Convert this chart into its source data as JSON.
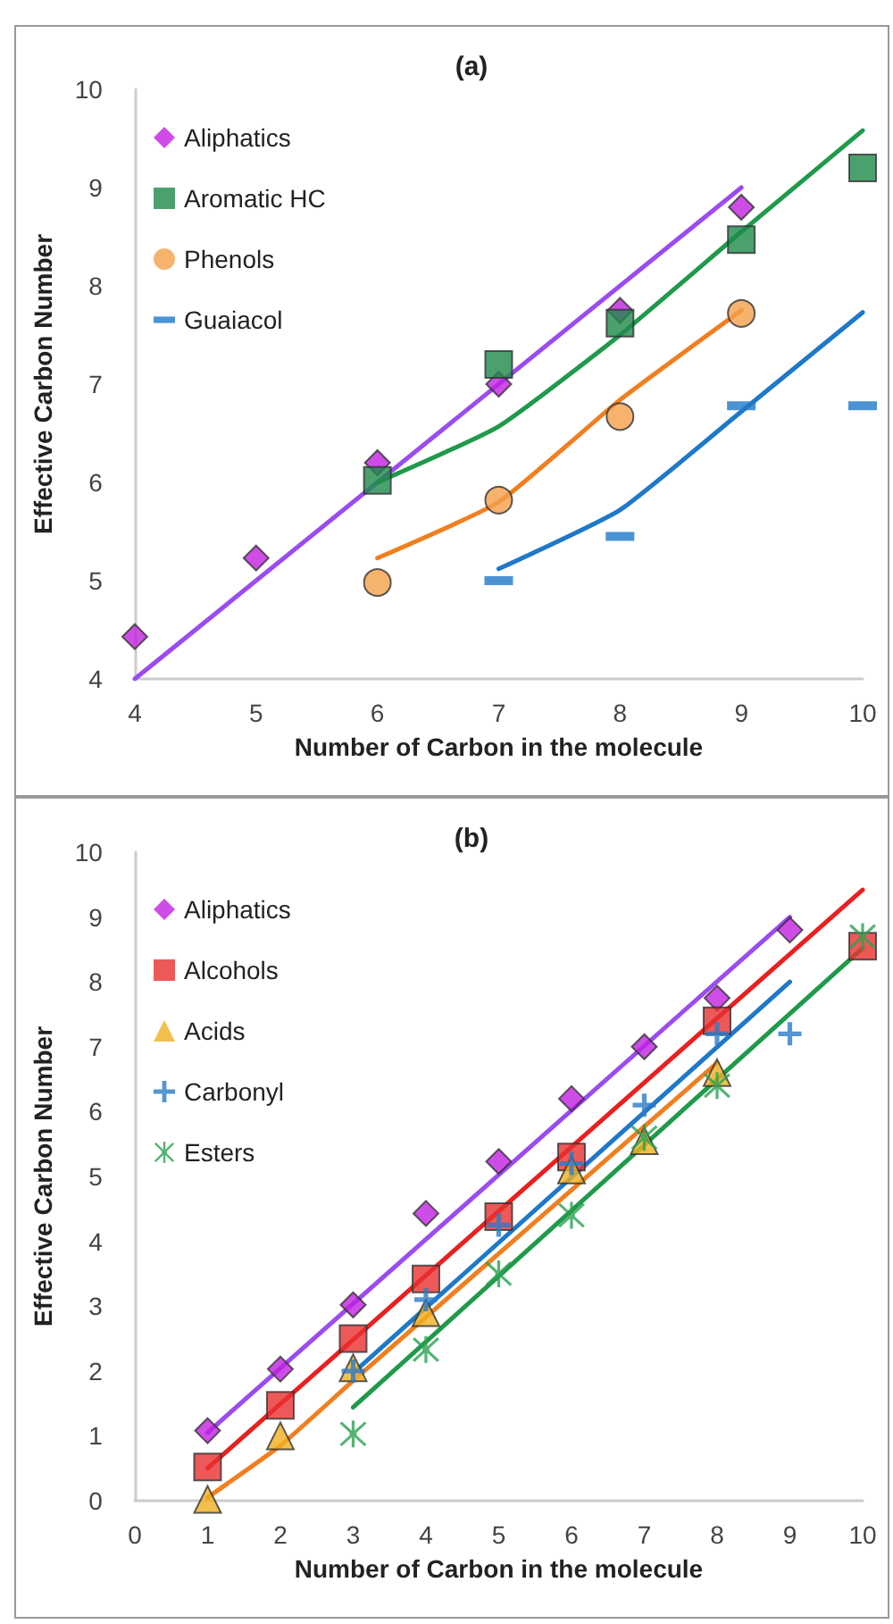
{
  "chart_data": [
    {
      "type": "scatter",
      "title": "(a)",
      "xlabel": "Number of Carbon in the molecule",
      "ylabel": "Effective Carbon Number",
      "xlim": [
        4,
        10
      ],
      "xticks": [
        4,
        5,
        6,
        7,
        8,
        9,
        10
      ],
      "ylim": [
        4,
        10
      ],
      "yticks": [
        4,
        5,
        6,
        7,
        8,
        9,
        10
      ],
      "legend": "top left",
      "series": [
        {
          "type": "line",
          "color": "#9b4cf0",
          "x": [
            4,
            9
          ],
          "values": [
            4,
            9
          ]
        },
        {
          "type": "line",
          "color": "#1f9a4a",
          "x": [
            6,
            7,
            8,
            9,
            10
          ],
          "values": [
            6.0,
            6.57,
            7.5,
            8.55,
            9.58
          ]
        },
        {
          "type": "line",
          "color": "#f07f20",
          "x": [
            6,
            7,
            8,
            9
          ],
          "values": [
            5.23,
            5.8,
            6.84,
            7.75
          ]
        },
        {
          "type": "line",
          "color": "#1f78c8",
          "x": [
            7,
            8,
            9,
            10
          ],
          "values": [
            5.12,
            5.72,
            6.72,
            7.73
          ]
        },
        {
          "type": "scatter",
          "name": "Aliphatics",
          "color": "#c020e0",
          "marker": "diamond",
          "x": [
            4,
            5,
            6,
            7,
            8,
            9
          ],
          "values": [
            4.43,
            5.23,
            6.2,
            7.0,
            7.75,
            8.8
          ]
        },
        {
          "type": "scatter",
          "name": "Aromatic HC",
          "color": "#1e8a4a",
          "marker": "square",
          "x": [
            6,
            7,
            8,
            9,
            10
          ],
          "values": [
            6.02,
            7.2,
            7.62,
            8.47,
            9.2
          ]
        },
        {
          "type": "scatter",
          "name": "Phenols",
          "color": "#f4a04a",
          "marker": "circle",
          "x": [
            6,
            7,
            8,
            9
          ],
          "values": [
            4.98,
            5.82,
            6.67,
            7.72
          ]
        },
        {
          "type": "scatter",
          "name": "Guaiacol",
          "color": "#1f78c8",
          "x": [
            7,
            8,
            9,
            10
          ],
          "values": [
            5.0,
            5.45,
            6.78,
            6.78
          ]
        }
      ]
    },
    {
      "type": "scatter",
      "title": "(b)",
      "xlabel": "Number of Carbon in the molecule",
      "ylabel": "Effective Carbon Number",
      "xlim": [
        0,
        10
      ],
      "xticks": [
        0,
        1,
        2,
        3,
        4,
        5,
        6,
        7,
        8,
        9,
        10
      ],
      "ylim": [
        0,
        10
      ],
      "yticks": [
        0,
        1,
        2,
        3,
        4,
        5,
        6,
        7,
        8,
        9,
        10
      ],
      "legend": "top left",
      "series": [
        {
          "type": "line",
          "color": "#9b4cf0",
          "x": [
            1,
            9
          ],
          "values": [
            1.05,
            9.0
          ]
        },
        {
          "type": "line",
          "color": "#e82020",
          "x": [
            1,
            10
          ],
          "values": [
            0.5,
            9.42
          ]
        },
        {
          "type": "line",
          "color": "#f07f20",
          "x": [
            1,
            2,
            3,
            8
          ],
          "values": [
            0.05,
            0.85,
            1.85,
            6.75
          ]
        },
        {
          "type": "line",
          "color": "#1f78c8",
          "x": [
            3,
            9
          ],
          "values": [
            1.97,
            8.0
          ]
        },
        {
          "type": "line",
          "color": "#1f9a4a",
          "x": [
            3,
            10
          ],
          "values": [
            1.44,
            8.52
          ]
        },
        {
          "type": "scatter",
          "name": "Aliphatics",
          "color": "#c020e0",
          "marker": "diamond",
          "x": [
            1,
            2,
            3,
            4,
            5,
            6,
            7,
            8,
            9
          ],
          "values": [
            1.08,
            2.03,
            3.02,
            4.43,
            5.23,
            6.2,
            7.0,
            7.75,
            8.8
          ]
        },
        {
          "type": "scatter",
          "name": "Alcohols",
          "color": "#e83030",
          "marker": "square",
          "x": [
            1,
            2,
            3,
            4,
            5,
            6,
            8,
            10
          ],
          "values": [
            0.52,
            1.47,
            2.5,
            3.42,
            4.38,
            5.3,
            7.4,
            8.55
          ]
        },
        {
          "type": "scatter",
          "name": "Acids",
          "color": "#f0b020",
          "marker": "triangle",
          "x": [
            1,
            2,
            3,
            4,
            6,
            7,
            8
          ],
          "values": [
            0.02,
            1.0,
            2.05,
            2.9,
            5.1,
            5.55,
            6.6
          ]
        },
        {
          "type": "scatter",
          "name": "Carbonyl",
          "color": "#2b7bc8",
          "marker": "cross",
          "x": [
            3,
            4,
            5,
            6,
            7,
            8,
            9
          ],
          "values": [
            2.0,
            3.1,
            4.25,
            5.2,
            6.1,
            7.2,
            7.2
          ]
        },
        {
          "type": "scatter",
          "name": "Esters",
          "color": "#2aa050",
          "marker": "star",
          "x": [
            3,
            4,
            5,
            6,
            7,
            8,
            10
          ],
          "values": [
            1.03,
            2.33,
            3.5,
            4.4,
            5.6,
            6.4,
            8.7
          ]
        }
      ]
    }
  ]
}
